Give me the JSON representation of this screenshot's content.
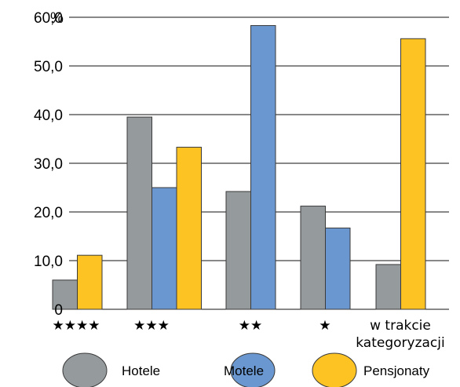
{
  "chart_data": {
    "type": "bar",
    "ylabel_unit": "%",
    "ylim": [
      0,
      60
    ],
    "yticks": [
      {
        "value": 0,
        "label": "0"
      },
      {
        "value": 10,
        "label": "10,0"
      },
      {
        "value": 20,
        "label": "20,0"
      },
      {
        "value": 30,
        "label": "30,0"
      },
      {
        "value": 40,
        "label": "40,0"
      },
      {
        "value": 50,
        "label": "50,0"
      },
      {
        "value": 60,
        "label": "60,0"
      }
    ],
    "categories": [
      [
        "★★★★"
      ],
      [
        "★★★"
      ],
      [
        "★★"
      ],
      [
        "★"
      ],
      [
        "w trakcie",
        "kategoryzacji"
      ]
    ],
    "series": [
      {
        "name": "Hotele",
        "color": "#959a9c",
        "values": [
          6.0,
          39.5,
          24.2,
          21.2,
          9.2
        ]
      },
      {
        "name": "Motele",
        "color": "#6a97cf",
        "values": [
          null,
          25.0,
          58.3,
          16.7,
          null
        ]
      },
      {
        "name": "Pensjonaty",
        "color": "#fdc323",
        "values": [
          11.1,
          33.3,
          null,
          null,
          55.6
        ]
      }
    ],
    "grid": "horizontal",
    "legend_position": "bottom"
  }
}
